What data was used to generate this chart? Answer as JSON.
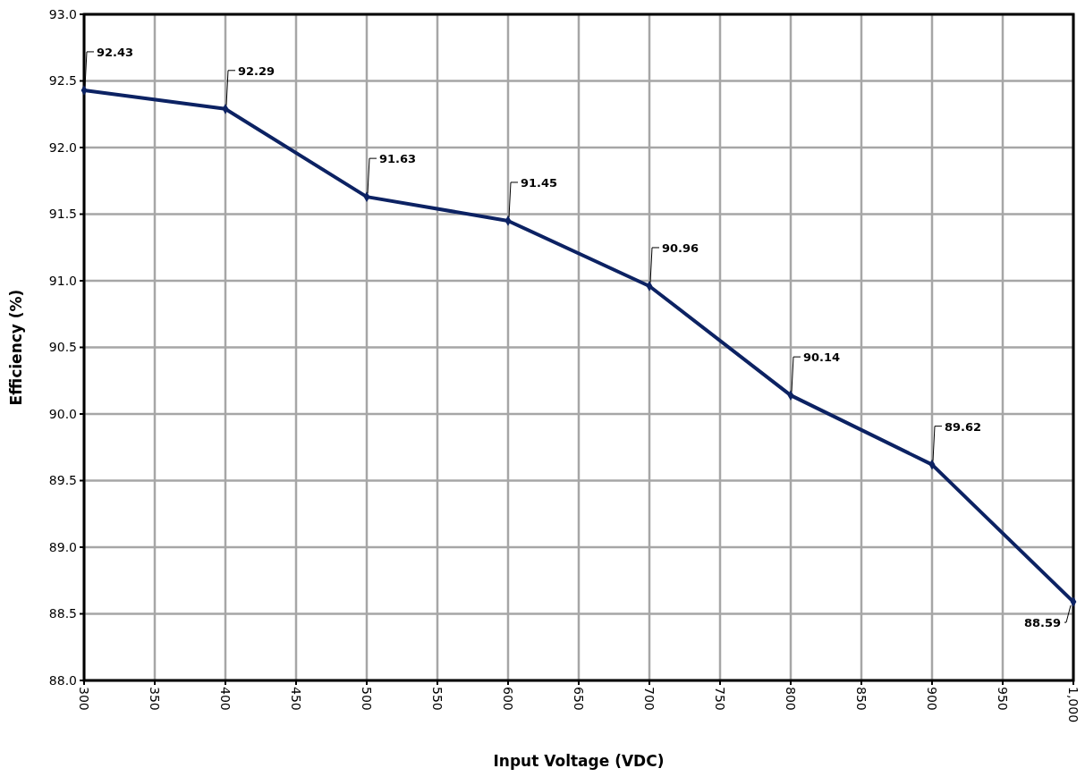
{
  "chart_data": {
    "type": "line",
    "xlabel": "Input Voltage (VDC)",
    "ylabel": "Efficiency (%)",
    "x": [
      300,
      400,
      500,
      600,
      700,
      800,
      900,
      1000
    ],
    "series": [
      {
        "color": "#0c2263",
        "values": [
          92.43,
          92.29,
          91.63,
          91.45,
          90.96,
          90.14,
          89.62,
          88.59
        ]
      }
    ],
    "xlim": [
      300,
      1000
    ],
    "xticks": [
      300,
      350,
      400,
      450,
      500,
      550,
      600,
      650,
      700,
      750,
      800,
      850,
      900,
      950,
      {
        "value": 1000,
        "label": "1,000"
      }
    ],
    "ylim": [
      88,
      93
    ],
    "yticks": [
      {
        "value": 88,
        "label": "88.0"
      },
      88.5,
      {
        "value": 89,
        "label": "89.0"
      },
      89.5,
      {
        "value": 90,
        "label": "90.0"
      },
      90.5,
      {
        "value": 91,
        "label": "91.0"
      },
      91.5,
      {
        "value": 92,
        "label": "92.0"
      },
      92.5,
      {
        "value": 93,
        "label": "93.0"
      }
    ],
    "grid": true,
    "marker": "diamond",
    "line_style": "solid",
    "data_labels": true
  }
}
